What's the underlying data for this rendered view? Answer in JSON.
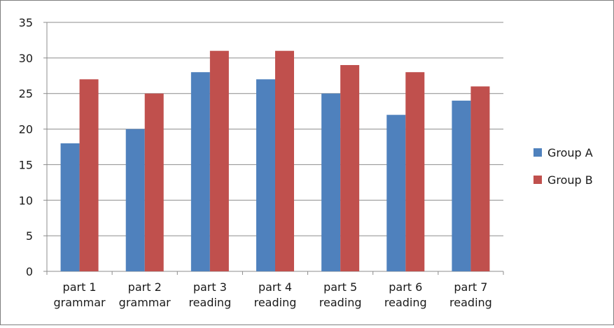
{
  "chart_data": {
    "type": "bar",
    "title": "",
    "xlabel": "",
    "ylabel": "",
    "ylim": [
      0,
      35
    ],
    "yticks": [
      0,
      5,
      10,
      15,
      20,
      25,
      30,
      35
    ],
    "grid": true,
    "legend_position": "right",
    "categories": [
      [
        "part 1",
        "grammar"
      ],
      [
        "part 2",
        "grammar"
      ],
      [
        "part 3",
        "reading"
      ],
      [
        "part 4",
        "reading"
      ],
      [
        "part 5",
        "reading"
      ],
      [
        "part 6",
        "reading"
      ],
      [
        "part 7",
        "reading"
      ]
    ],
    "series": [
      {
        "name": "Group A",
        "color": "#4f81bd",
        "values": [
          18,
          20,
          28,
          27,
          25,
          22,
          24
        ]
      },
      {
        "name": "Group B",
        "color": "#c0504d",
        "values": [
          27,
          25,
          31,
          31,
          29,
          28,
          26
        ]
      }
    ]
  }
}
